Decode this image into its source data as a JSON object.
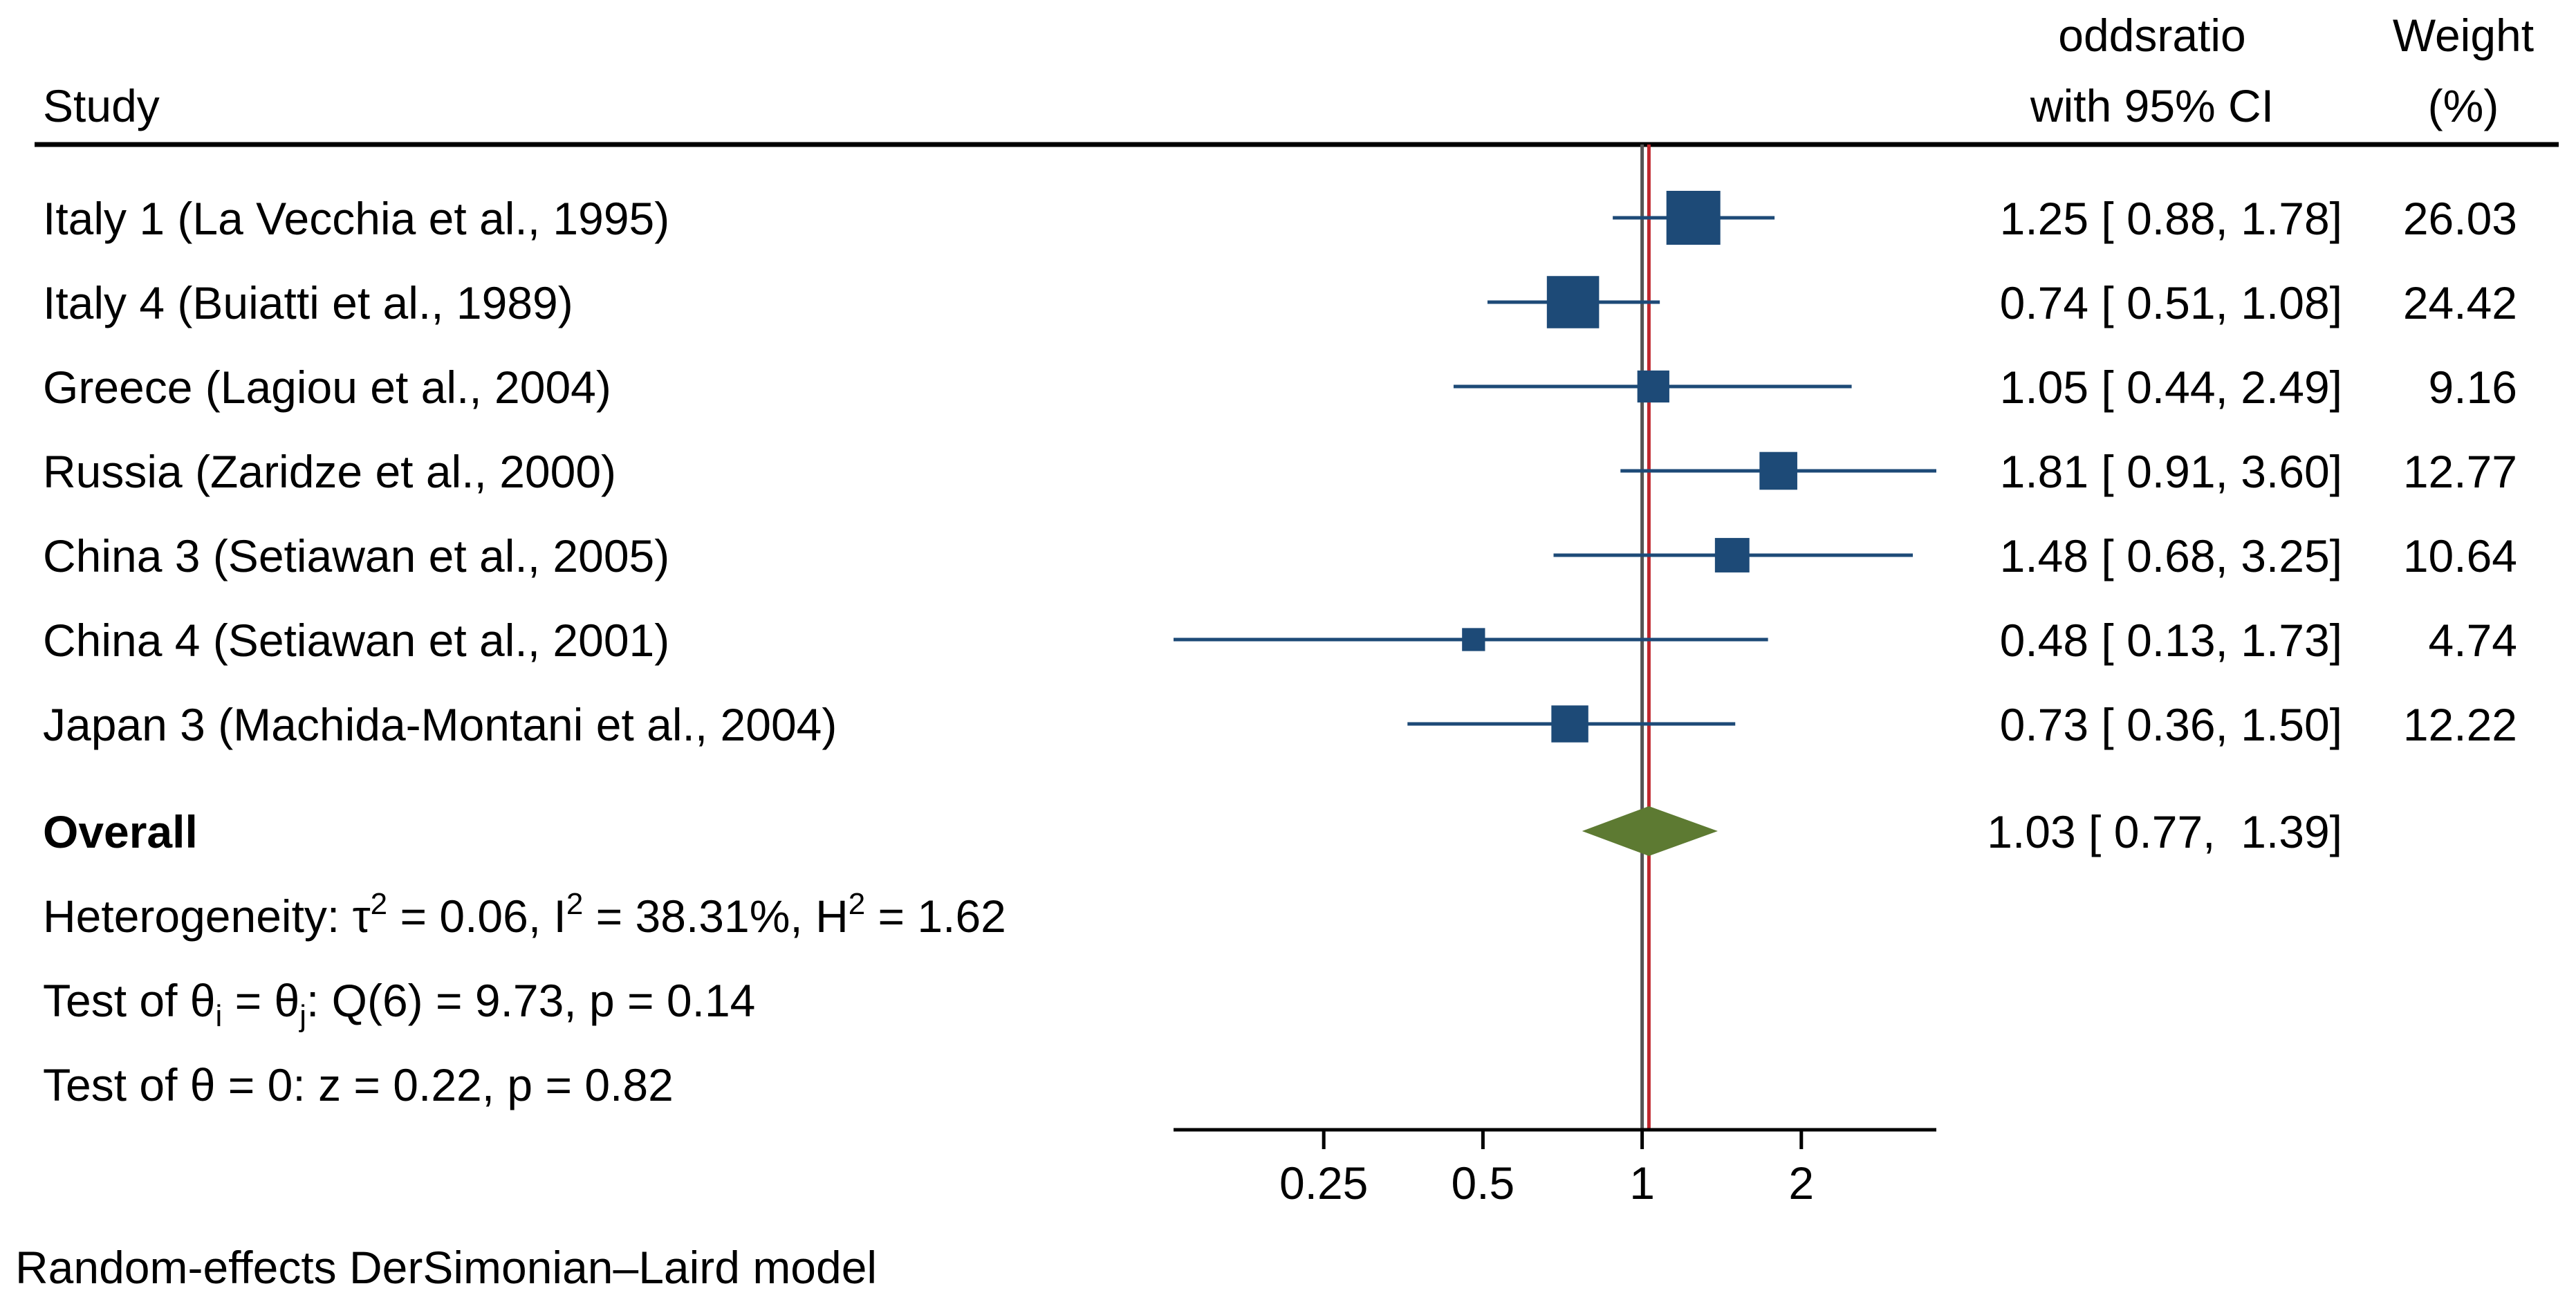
{
  "chart_data": {
    "type": "forest",
    "title": "",
    "columns": {
      "study": "Study",
      "effect_line1": "oddsratio",
      "effect_line2": "with 95% CI",
      "weight_line1": "Weight",
      "weight_line2": "(%)"
    },
    "studies": [
      {
        "label": "Italy 1 (La Vecchia et al., 1995)",
        "or": 1.25,
        "lo": 0.88,
        "hi": 1.78,
        "weight": 26.03,
        "ci_text": "1.25 [ 0.88,  1.78]",
        "weight_text": "26.03"
      },
      {
        "label": "Italy 4 (Buiatti et al., 1989)",
        "or": 0.74,
        "lo": 0.51,
        "hi": 1.08,
        "weight": 24.42,
        "ci_text": "0.74 [ 0.51,  1.08]",
        "weight_text": "24.42"
      },
      {
        "label": "Greece (Lagiou et al., 2004)",
        "or": 1.05,
        "lo": 0.44,
        "hi": 2.49,
        "weight": 9.16,
        "ci_text": "1.05 [ 0.44,  2.49]",
        "weight_text": "9.16"
      },
      {
        "label": "Russia (Zaridze et al., 2000)",
        "or": 1.81,
        "lo": 0.91,
        "hi": 3.6,
        "weight": 12.77,
        "ci_text": "1.81 [ 0.91,  3.60]",
        "weight_text": "12.77"
      },
      {
        "label": "China 3 (Setiawan et al., 2005)",
        "or": 1.48,
        "lo": 0.68,
        "hi": 3.25,
        "weight": 10.64,
        "ci_text": "1.48 [ 0.68,  3.25]",
        "weight_text": "10.64"
      },
      {
        "label": "China 4 (Setiawan et al., 2001)",
        "or": 0.48,
        "lo": 0.13,
        "hi": 1.73,
        "weight": 4.74,
        "ci_text": "0.48 [ 0.13,  1.73]",
        "weight_text": "4.74"
      },
      {
        "label": "Japan 3 (Machida-Montani et al., 2004)",
        "or": 0.73,
        "lo": 0.36,
        "hi": 1.5,
        "weight": 12.22,
        "ci_text": "0.73 [ 0.36,  1.50]",
        "weight_text": "12.22"
      }
    ],
    "overall": {
      "label": "Overall",
      "or": 1.03,
      "lo": 0.77,
      "hi": 1.39,
      "ci_text": "1.03 [ 0.77,  1.39]"
    },
    "stats": {
      "heterogeneity_prefix": "Heterogeneity: τ",
      "tau_sup": "2",
      "tau_value": " = 0.06, I",
      "i_sup": "2",
      "i_value": " = 38.31%, H",
      "h_sup": "2",
      "h_value": " = 1.62",
      "test1_a": "Test of θ",
      "test1_sub1": "i",
      "test1_b": " = θ",
      "test1_sub2": "j",
      "test1_c": ": Q(6) = 9.73, p = 0.14",
      "test2": "Test of θ = 0: z = 0.22, p = 0.82"
    },
    "x_axis": {
      "scale": "log",
      "range": [
        0.13,
        3.6
      ],
      "ticks": [
        0.25,
        0.5,
        1,
        2
      ],
      "tick_labels": [
        "0.25",
        "0.5",
        "1",
        "2"
      ],
      "null_line": 1,
      "overall_line": 1.03
    },
    "footnote": "Random-effects DerSimonian–Laird model"
  },
  "colors": {
    "marker": "#1d4a77",
    "diamond": "#5d7a32",
    "overall_line": "#c0272d",
    "null_line": "#555555",
    "text": "#000000"
  }
}
